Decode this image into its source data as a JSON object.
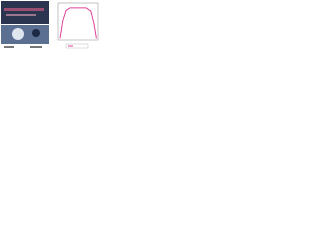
{
  "chart_data": {
    "type": "line",
    "x": [
      0.5,
      1.2,
      2,
      3,
      5,
      7,
      8.2,
      9,
      9.6
    ],
    "series": [
      {
        "color": "#e0409a",
        "values": [
          0.05,
          0.6,
          0.92,
          1,
          1,
          1,
          0.9,
          0.5,
          0.05
        ]
      }
    ],
    "xlim": [
      0,
      10
    ],
    "ylim": [
      0,
      1.15
    ]
  }
}
